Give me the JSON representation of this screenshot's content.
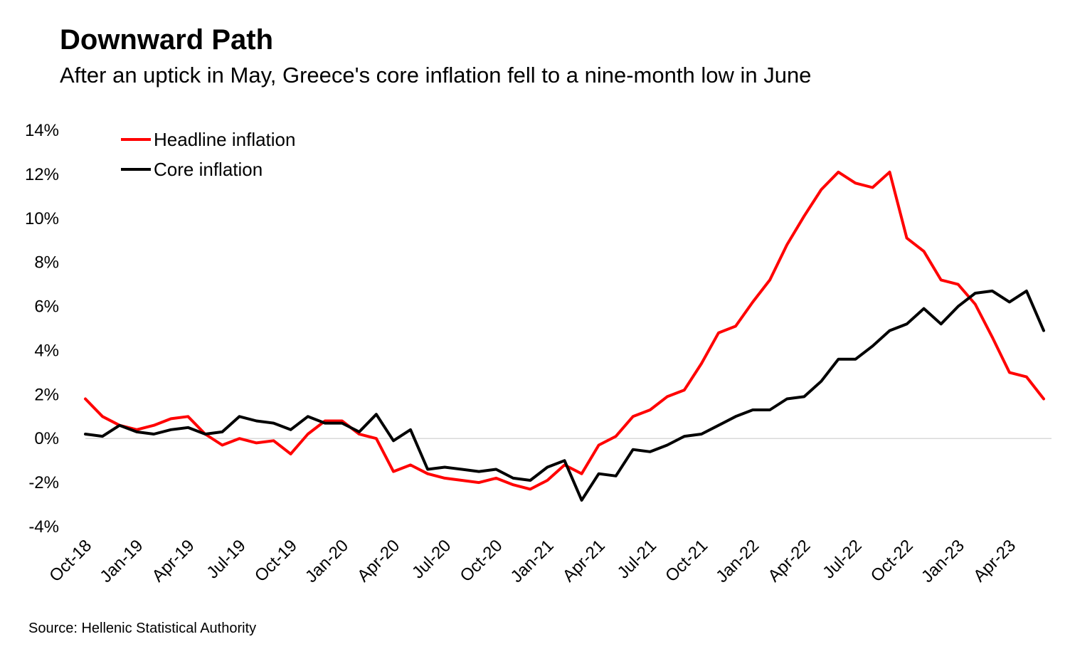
{
  "title": "Downward Path",
  "subtitle": "After an uptick in May, Greece's core inflation fell to a nine-month low in June",
  "source": "Source: Hellenic Statistical Authority",
  "colors": {
    "headline": "#ff0000",
    "core": "#000000",
    "zero_line": "#d9d9d9"
  },
  "chart_data": {
    "type": "line",
    "ylim": [
      -4,
      14
    ],
    "yticks": [
      -4,
      -2,
      0,
      2,
      4,
      6,
      8,
      10,
      12,
      14
    ],
    "ytick_labels": [
      "-4%",
      "-2%",
      "0%",
      "2%",
      "4%",
      "6%",
      "8%",
      "10%",
      "12%",
      "14%"
    ],
    "x": [
      "Oct-18",
      "Nov-18",
      "Dec-18",
      "Jan-19",
      "Feb-19",
      "Mar-19",
      "Apr-19",
      "May-19",
      "Jun-19",
      "Jul-19",
      "Aug-19",
      "Sep-19",
      "Oct-19",
      "Nov-19",
      "Dec-19",
      "Jan-20",
      "Feb-20",
      "Mar-20",
      "Apr-20",
      "May-20",
      "Jun-20",
      "Jul-20",
      "Aug-20",
      "Sep-20",
      "Oct-20",
      "Nov-20",
      "Dec-20",
      "Jan-21",
      "Feb-21",
      "Mar-21",
      "Apr-21",
      "May-21",
      "Jun-21",
      "Jul-21",
      "Aug-21",
      "Sep-21",
      "Oct-21",
      "Nov-21",
      "Dec-21",
      "Jan-22",
      "Feb-22",
      "Mar-22",
      "Apr-22",
      "May-22",
      "Jun-22",
      "Jul-22",
      "Aug-22",
      "Sep-22",
      "Oct-22",
      "Nov-22",
      "Dec-22",
      "Jan-23",
      "Feb-23",
      "Mar-23",
      "Apr-23",
      "May-23",
      "Jun-23"
    ],
    "x_tick_labels": [
      "Oct-18",
      "Jan-19",
      "Apr-19",
      "Jul-19",
      "Oct-19",
      "Jan-20",
      "Apr-20",
      "Jul-20",
      "Oct-20",
      "Jan-21",
      "Apr-21",
      "Jul-21",
      "Oct-21",
      "Jan-22",
      "Apr-22",
      "Jul-22",
      "Oct-22",
      "Jan-23",
      "Apr-23"
    ],
    "series": [
      {
        "name": "Headline inflation",
        "values": [
          1.8,
          1.0,
          0.6,
          0.4,
          0.6,
          0.9,
          1.0,
          0.2,
          -0.3,
          0.0,
          -0.2,
          -0.1,
          -0.7,
          0.2,
          0.8,
          0.8,
          0.2,
          0.0,
          -1.5,
          -1.2,
          -1.6,
          -1.8,
          -1.9,
          -2.0,
          -1.8,
          -2.1,
          -2.3,
          -1.9,
          -1.2,
          -1.6,
          -0.3,
          0.1,
          1.0,
          1.3,
          1.9,
          2.2,
          3.4,
          4.8,
          5.1,
          6.2,
          7.2,
          8.8,
          10.1,
          11.3,
          12.1,
          11.6,
          11.4,
          12.1,
          9.1,
          8.5,
          7.2,
          7.0,
          6.1,
          4.6,
          3.0,
          2.8,
          1.8
        ]
      },
      {
        "name": "Core inflation",
        "values": [
          0.2,
          0.1,
          0.6,
          0.3,
          0.2,
          0.4,
          0.5,
          0.2,
          0.3,
          1.0,
          0.8,
          0.7,
          0.4,
          1.0,
          0.7,
          0.7,
          0.3,
          1.1,
          -0.1,
          0.4,
          -1.4,
          -1.3,
          -1.4,
          -1.5,
          -1.4,
          -1.8,
          -1.9,
          -1.3,
          -1.0,
          -2.8,
          -1.6,
          -1.7,
          -0.5,
          -0.6,
          -0.3,
          0.1,
          0.2,
          0.6,
          1.0,
          1.3,
          1.3,
          1.8,
          1.9,
          2.6,
          3.6,
          3.6,
          4.2,
          4.9,
          5.2,
          5.9,
          5.2,
          6.0,
          6.6,
          6.7,
          6.2,
          6.7,
          4.9
        ]
      }
    ]
  }
}
